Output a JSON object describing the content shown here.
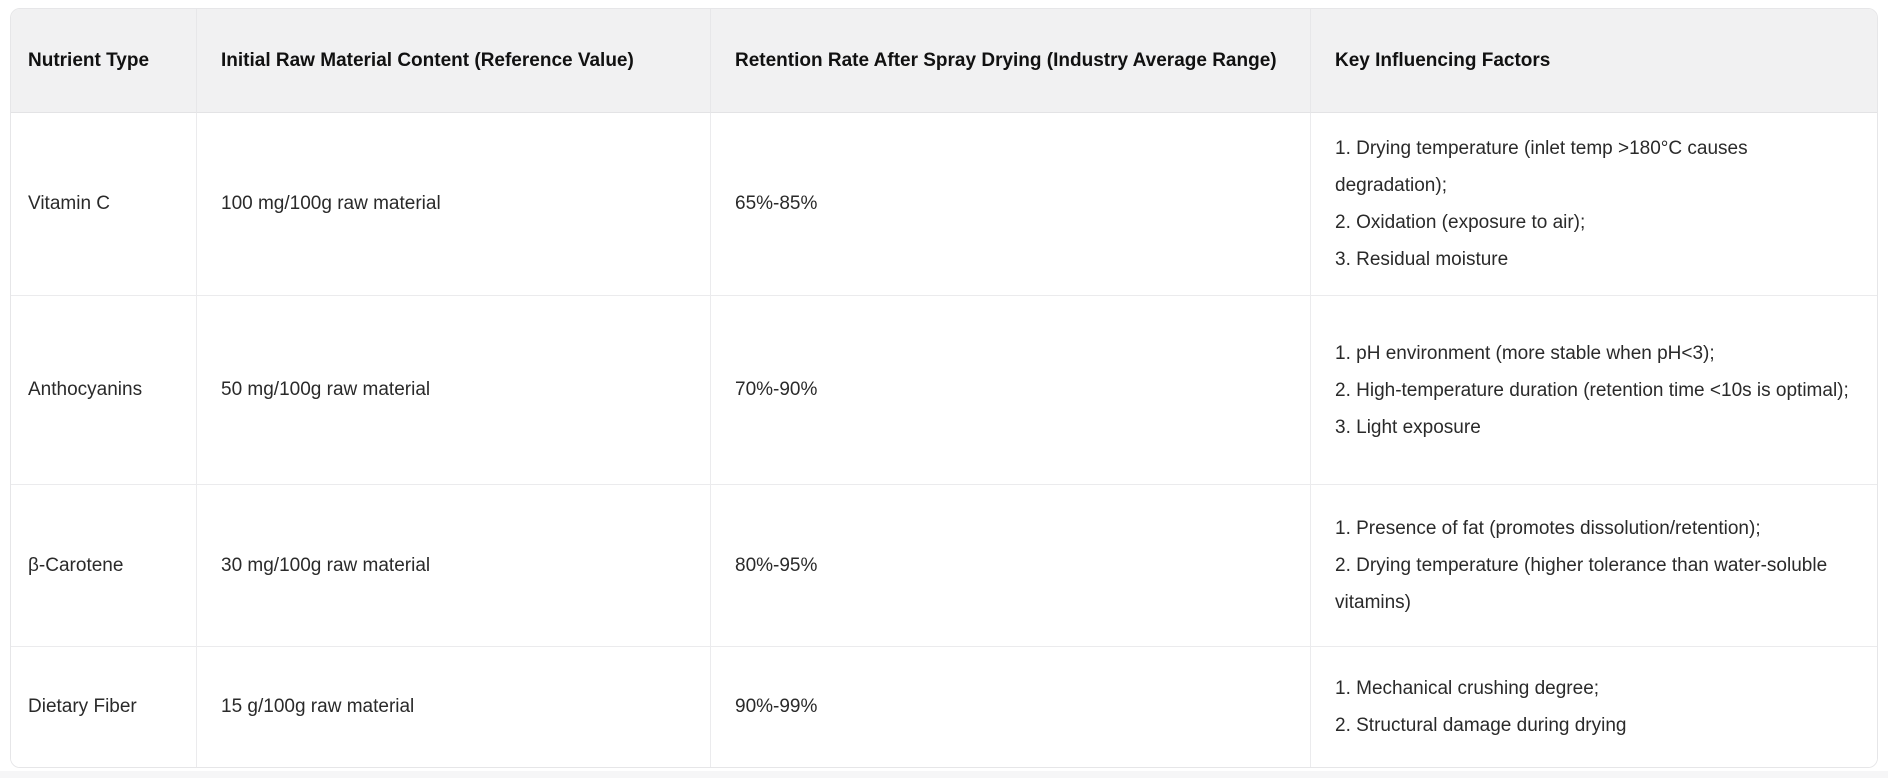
{
  "table": {
    "columns": [
      {
        "id": "nutrient_type",
        "label": "Nutrient Type"
      },
      {
        "id": "initial_content",
        "label": "Initial Raw Material Content (Reference Value)"
      },
      {
        "id": "retention_rate",
        "label": "Retention Rate After Spray Drying (Industry Average Range)"
      },
      {
        "id": "key_factors",
        "label": "Key Influencing Factors"
      }
    ],
    "rows": [
      {
        "nutrient_type": "Vitamin C",
        "initial_content": "100 mg/100g raw material",
        "retention_rate": "65%-85%",
        "key_factors": [
          "1. Drying temperature (inlet temp >180°C causes degradation);",
          "2. Oxidation (exposure to air);",
          "3. Residual moisture"
        ]
      },
      {
        "nutrient_type": "Anthocyanins",
        "initial_content": "50 mg/100g raw material",
        "retention_rate": "70%-90%",
        "key_factors": [
          "1. pH environment (more stable when pH<3);",
          "2. High-temperature duration (retention time <10s is optimal);",
          "3. Light exposure"
        ]
      },
      {
        "nutrient_type": "β-Carotene",
        "initial_content": "30 mg/100g raw material",
        "retention_rate": "80%-95%",
        "key_factors": [
          "1. Presence of fat (promotes dissolution/retention);",
          "2. Drying temperature (higher tolerance than water-soluble vitamins)"
        ]
      },
      {
        "nutrient_type": "Dietary Fiber",
        "initial_content": "15 g/100g raw material",
        "retention_rate": "90%-99%",
        "key_factors": [
          "1. Mechanical crushing degree;",
          "2. Structural damage during drying"
        ]
      }
    ]
  },
  "colors": {
    "header_background": "#f1f1f2",
    "body_background": "#ffffff",
    "border": "#ebebed",
    "header_text": "#111111",
    "body_text": "#2a2a2a"
  }
}
